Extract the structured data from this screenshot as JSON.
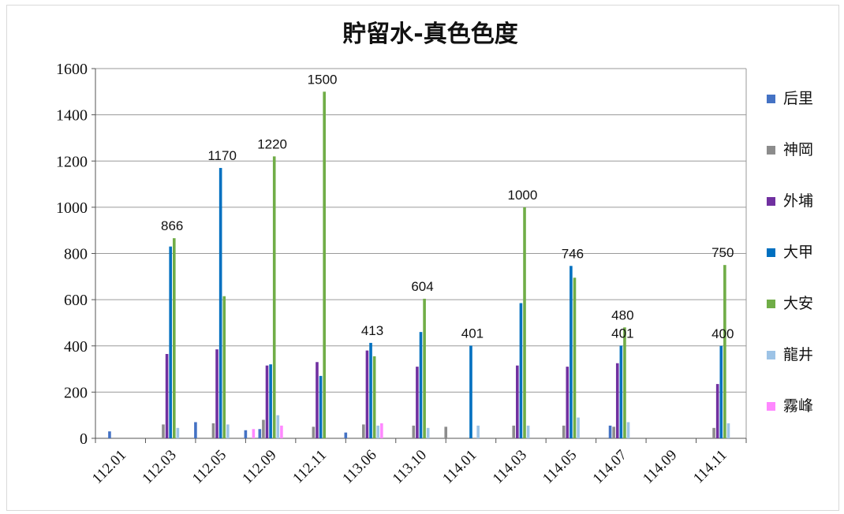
{
  "chart_data": {
    "type": "bar",
    "title": "貯留水-真色色度",
    "xlabel": "",
    "ylabel": "",
    "ylim": [
      0,
      1600
    ],
    "yticks": [
      0,
      200,
      400,
      600,
      800,
      1000,
      1200,
      1400,
      1600
    ],
    "grid": true,
    "legend_position": "right",
    "categories": [
      "112.01",
      "112.03",
      "112.05",
      "112.09",
      "112.11",
      "113.06",
      "113.10",
      "114.01",
      "114.03",
      "114.05",
      "114.07",
      "114.09",
      "114.11"
    ],
    "series": [
      {
        "name": "后里",
        "color": "#4472c4",
        "values": [
          30,
          0,
          0,
          40,
          0,
          0,
          0,
          0,
          0,
          0,
          55,
          0,
          0
        ]
      },
      {
        "name": "神岡",
        "color": "#8c8c8c",
        "values": [
          0,
          60,
          65,
          80,
          50,
          60,
          55,
          0,
          55,
          55,
          50,
          0,
          45
        ]
      },
      {
        "name": "外埔",
        "color": "#7030a0",
        "values": [
          0,
          365,
          385,
          315,
          330,
          380,
          310,
          0,
          315,
          310,
          325,
          0,
          235
        ]
      },
      {
        "name": "大甲",
        "color": "#0070c0",
        "values": [
          0,
          830,
          1170,
          320,
          270,
          413,
          460,
          401,
          585,
          746,
          401,
          0,
          400
        ]
      },
      {
        "name": "大安",
        "color": "#70ad47",
        "values": [
          0,
          866,
          615,
          1220,
          1500,
          355,
          604,
          0,
          1000,
          695,
          480,
          0,
          750
        ]
      },
      {
        "name": "龍井",
        "color": "#9dc3e6",
        "values": [
          0,
          45,
          60,
          100,
          0,
          55,
          45,
          55,
          55,
          90,
          70,
          0,
          65
        ]
      },
      {
        "name": "霧峰",
        "color": "#ff88ff",
        "values": [
          0,
          0,
          0,
          55,
          0,
          65,
          0,
          0,
          0,
          0,
          0,
          0,
          0
        ]
      }
    ],
    "extra_bars": [
      {
        "series": "后里",
        "between": [
          "112.03",
          "112.05"
        ],
        "value": 70
      },
      {
        "series": "后里",
        "between": [
          "112.05",
          "112.09"
        ],
        "value": 35
      },
      {
        "series": "霧峰",
        "between": [
          "112.05",
          "112.09"
        ],
        "value": 40
      },
      {
        "series": "后里",
        "between": [
          "112.11",
          "113.06"
        ],
        "value": 25
      },
      {
        "series": "神岡",
        "between": [
          "113.10",
          "114.01"
        ],
        "value": 50
      }
    ],
    "data_labels": [
      {
        "category": "112.03",
        "text": "866",
        "value": 866
      },
      {
        "category": "112.05",
        "text": "1170",
        "value": 1170
      },
      {
        "category": "112.09",
        "text": "1220",
        "value": 1220
      },
      {
        "category": "112.11",
        "text": "1500",
        "value": 1500
      },
      {
        "category": "113.06",
        "text": "413",
        "value": 413
      },
      {
        "category": "113.10",
        "text": "604",
        "value": 604
      },
      {
        "category": "114.01",
        "text": "401",
        "value": 401
      },
      {
        "category": "114.03",
        "text": "1000",
        "value": 1000
      },
      {
        "category": "114.05",
        "text": "746",
        "value": 746
      },
      {
        "category": "114.07",
        "text": "480",
        "value": 480
      },
      {
        "category": "114.07",
        "text": "401",
        "value": 401
      },
      {
        "category": "114.11",
        "text": "750",
        "value": 750
      },
      {
        "category": "114.11",
        "text": "400",
        "value": 400
      }
    ]
  }
}
